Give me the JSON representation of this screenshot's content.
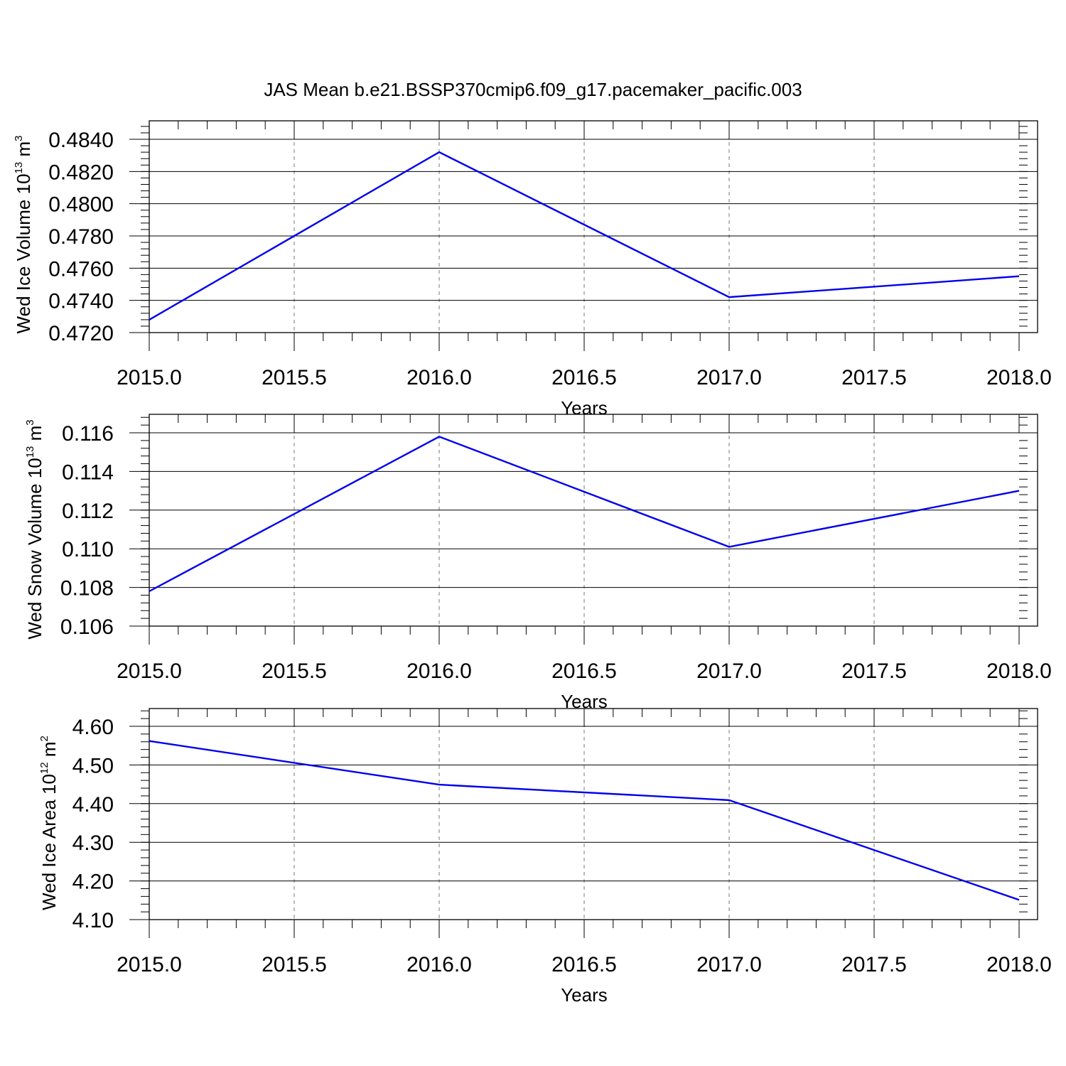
{
  "title": "JAS Mean b.e21.BSSP370cmip6.f09_g17.pacemaker_pacific.003",
  "chart_data": [
    {
      "type": "line",
      "xlabel": "Years",
      "ylabel": {
        "text": "Wed Ice Volume 10",
        "exp": "13",
        "unit": " m",
        "unit_exp": "3"
      },
      "x": [
        2015.0,
        2016.0,
        2017.0,
        2018.0
      ],
      "values": [
        0.4728,
        0.4832,
        0.4742,
        0.4755
      ],
      "xlim": [
        2015.0,
        2018.0
      ],
      "ylim": [
        0.472,
        0.484
      ],
      "x_ticks": [
        "2015.0",
        "2015.5",
        "2016.0",
        "2016.5",
        "2017.0",
        "2017.5",
        "2018.0"
      ],
      "y_ticks": [
        "0.4720",
        "0.4740",
        "0.4760",
        "0.4780",
        "0.4800",
        "0.4820",
        "0.4840"
      ],
      "grid": "vertical-dashed",
      "color": "#0000ee"
    },
    {
      "type": "line",
      "xlabel": "Years",
      "ylabel": {
        "text": "Wed Snow Volume 10",
        "exp": "13",
        "unit": " m",
        "unit_exp": "3"
      },
      "x": [
        2015.0,
        2016.0,
        2017.0,
        2018.0
      ],
      "values": [
        0.1078,
        0.1158,
        0.1101,
        0.113
      ],
      "xlim": [
        2015.0,
        2018.0
      ],
      "ylim": [
        0.106,
        0.116
      ],
      "x_ticks": [
        "2015.0",
        "2015.5",
        "2016.0",
        "2016.5",
        "2017.0",
        "2017.5",
        "2018.0"
      ],
      "y_ticks": [
        "0.106",
        "0.108",
        "0.110",
        "0.112",
        "0.114",
        "0.116"
      ],
      "grid": "vertical-dashed",
      "color": "#0000ee"
    },
    {
      "type": "line",
      "xlabel": "Years",
      "ylabel": {
        "text": "Wed Ice Area 10",
        "exp": "12",
        "unit": " m",
        "unit_exp": "2"
      },
      "x": [
        2015.0,
        2016.0,
        2017.0,
        2018.0
      ],
      "values": [
        4.562,
        4.449,
        4.409,
        4.151
      ],
      "xlim": [
        2015.0,
        2018.0
      ],
      "ylim": [
        4.1,
        4.6
      ],
      "x_ticks": [
        "2015.0",
        "2015.5",
        "2016.0",
        "2016.5",
        "2017.0",
        "2017.5",
        "2018.0"
      ],
      "y_ticks": [
        "4.10",
        "4.20",
        "4.30",
        "4.40",
        "4.50",
        "4.60"
      ],
      "grid": "vertical-dashed",
      "color": "#0000ee"
    }
  ]
}
